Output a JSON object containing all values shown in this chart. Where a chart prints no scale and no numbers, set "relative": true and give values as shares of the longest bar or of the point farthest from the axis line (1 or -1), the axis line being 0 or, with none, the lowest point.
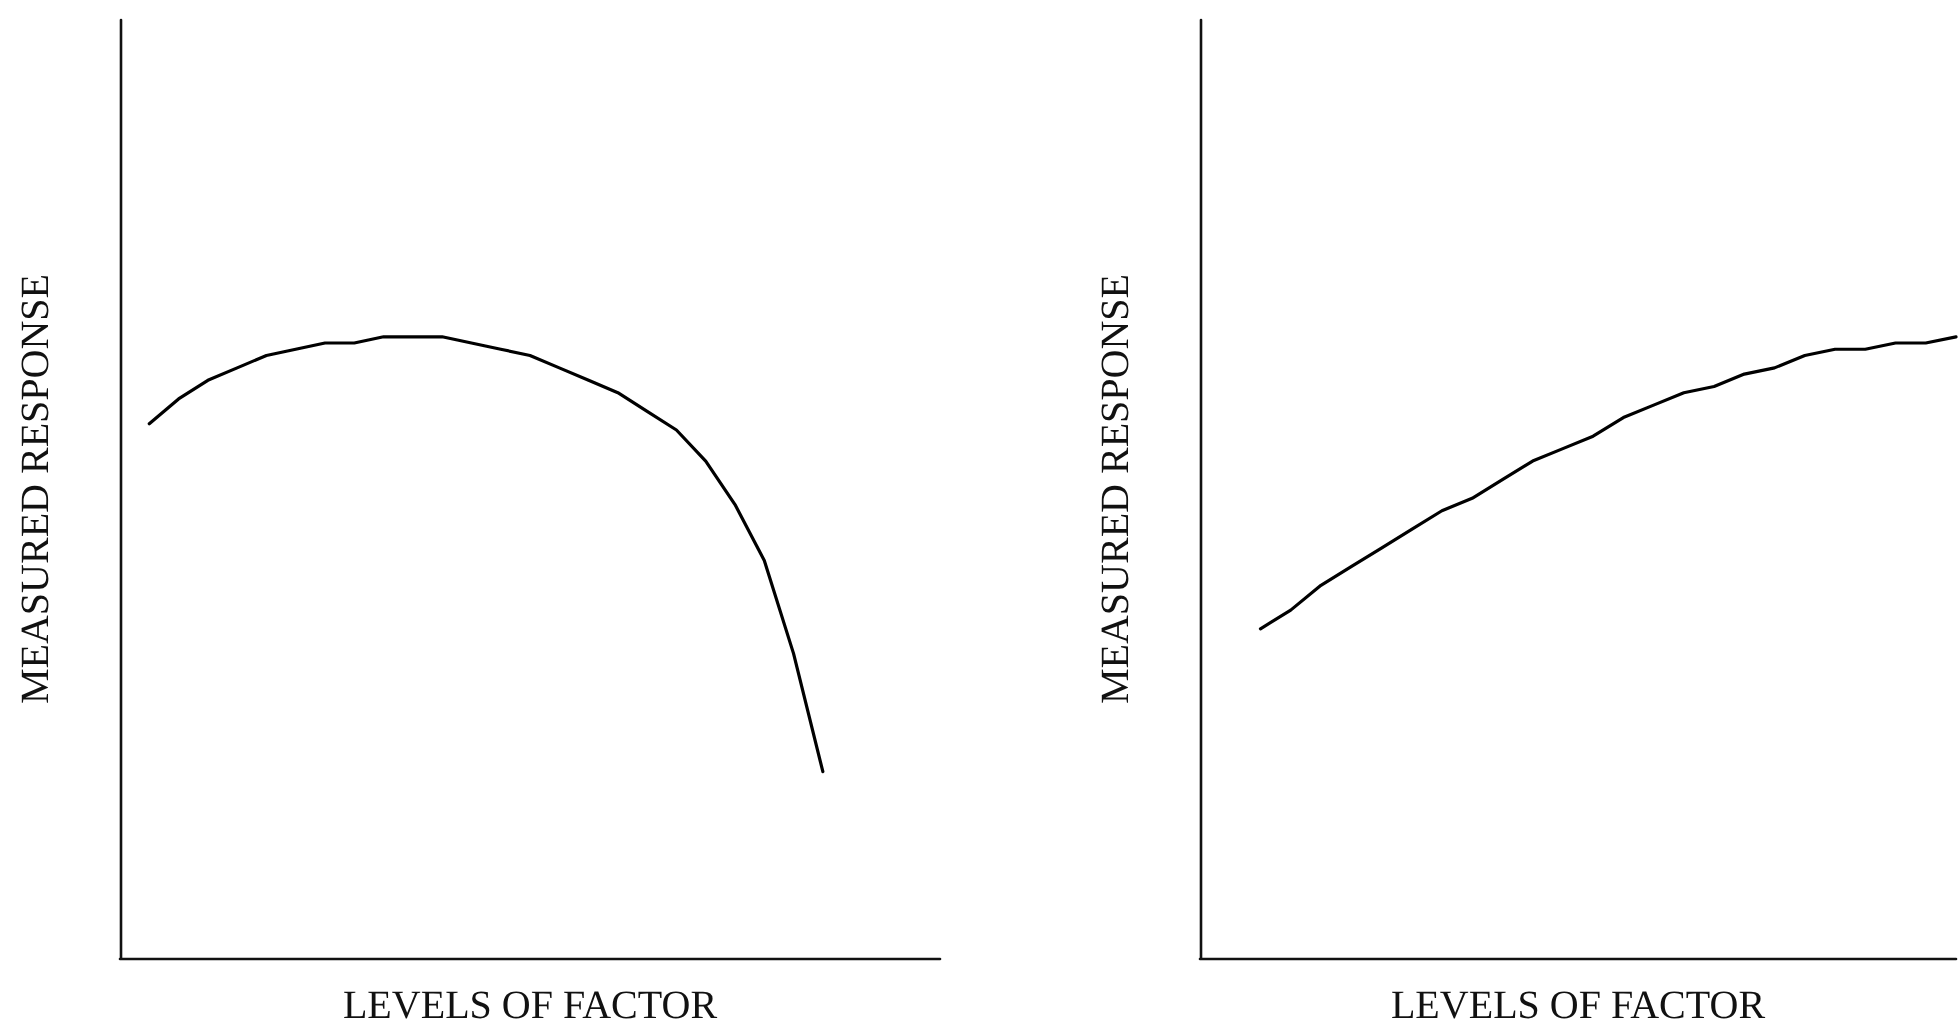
{
  "chart_data": [
    {
      "type": "line",
      "xlabel": "LEVELS OF FACTOR",
      "ylabel": "MEASURED RESPONSE",
      "relative": true,
      "categories": [
        null,
        null,
        null,
        null,
        null,
        null,
        null,
        null,
        null,
        null,
        null,
        null,
        null,
        null,
        null,
        null,
        null,
        null,
        null,
        null,
        null,
        null,
        null,
        null,
        null,
        null,
        null,
        null,
        null
      ],
      "series": [
        {
          "color": "#000000",
          "values": [
            null,
            0.86,
            0.9,
            0.93,
            0.95,
            0.97,
            0.98,
            0.99,
            0.99,
            1.0,
            1.0,
            1.0,
            0.99,
            0.98,
            0.97,
            0.95,
            0.93,
            0.91,
            0.88,
            0.85,
            0.8,
            0.73,
            0.64,
            0.49,
            0.3,
            null,
            null,
            null,
            null
          ]
        }
      ]
    },
    {
      "type": "line",
      "xlabel": "LEVELS OF FACTOR",
      "ylabel": "MEASURED RESPONSE",
      "relative": true,
      "categories": [
        null,
        null,
        null,
        null,
        null,
        null,
        null,
        null,
        null,
        null,
        null,
        null,
        null,
        null,
        null,
        null,
        null,
        null,
        null,
        null,
        null,
        null,
        null,
        null,
        null,
        null
      ],
      "series": [
        {
          "color": "#000000",
          "values": [
            null,
            null,
            0.53,
            0.56,
            0.6,
            0.63,
            0.66,
            0.69,
            0.72,
            0.74,
            0.77,
            0.8,
            0.82,
            0.84,
            0.87,
            0.89,
            0.91,
            0.92,
            0.94,
            0.95,
            0.97,
            0.98,
            0.98,
            0.99,
            0.99,
            1.0
          ]
        }
      ]
    }
  ]
}
